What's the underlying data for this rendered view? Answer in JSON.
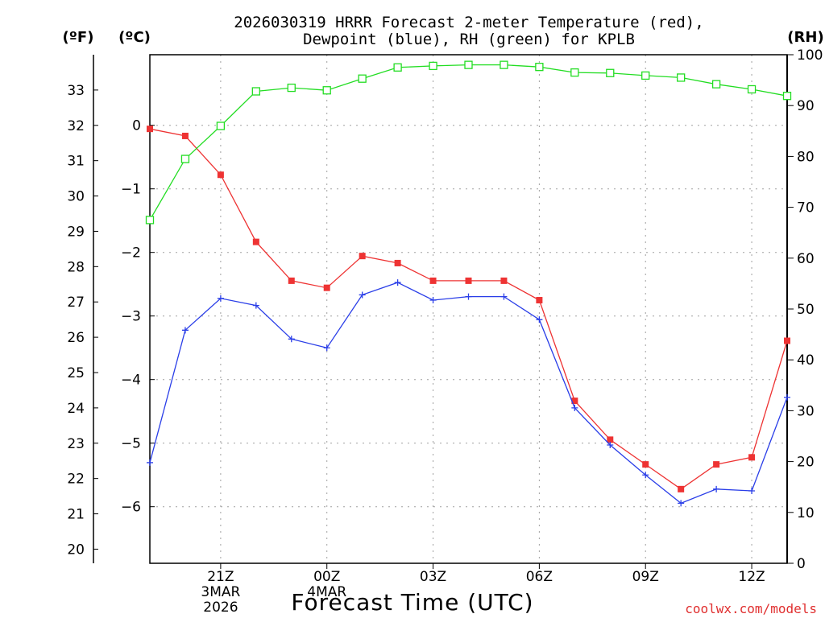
{
  "chart_data": {
    "type": "line",
    "title_line1": "2026030319 HRRR Forecast 2-meter Temperature (red),",
    "title_line2": "Dewpoint (blue), RH (green) for KPLB",
    "xlabel": "Forecast Time (UTC)",
    "credit": "coolwx.com/models",
    "units": {
      "fahrenheit": "(ºF)",
      "celsius": "(ºC)",
      "rh": "(RH)"
    },
    "fahrenheit_axis": {
      "ylim": [
        19.6,
        34.0
      ],
      "ticks": [
        "20",
        "21",
        "22",
        "23",
        "24",
        "25",
        "26",
        "27",
        "28",
        "29",
        "30",
        "31",
        "32",
        "33"
      ],
      "values": [
        20,
        21,
        22,
        23,
        24,
        25,
        26,
        27,
        28,
        29,
        30,
        31,
        32,
        33
      ]
    },
    "celsius_axis": {
      "ylim": [
        -6.89,
        1.11
      ],
      "ticks": [
        "0",
        "−1",
        "−2",
        "−3",
        "−4",
        "−5",
        "−6"
      ],
      "values": [
        0,
        -1,
        -2,
        -3,
        -4,
        -5,
        -6
      ]
    },
    "rh_axis": {
      "ylim": [
        0,
        100
      ],
      "ticks": [
        "0",
        "10",
        "20",
        "30",
        "40",
        "50",
        "60",
        "70",
        "80",
        "90",
        "100"
      ],
      "values": [
        0,
        10,
        20,
        30,
        40,
        50,
        60,
        70,
        80,
        90,
        100
      ]
    },
    "x_hours": [
      19,
      20,
      21,
      22,
      23,
      24,
      25,
      26,
      27,
      28,
      29,
      30,
      31,
      32,
      33,
      34,
      35,
      36,
      37
    ],
    "x_ticks": [
      {
        "hour": 21,
        "label": "21Z",
        "line2": "3MAR",
        "line3": "2026"
      },
      {
        "hour": 24,
        "label": "00Z",
        "line2": "4MAR",
        "line3": ""
      },
      {
        "hour": 27,
        "label": "03Z",
        "line2": "",
        "line3": ""
      },
      {
        "hour": 30,
        "label": "06Z",
        "line2": "",
        "line3": ""
      },
      {
        "hour": 33,
        "label": "09Z",
        "line2": "",
        "line3": ""
      },
      {
        "hour": 36,
        "label": "12Z",
        "line2": "",
        "line3": ""
      }
    ],
    "series": [
      {
        "name": "Temperature",
        "axis": "fahrenheit",
        "color": "#ee3333",
        "marker": "filled-square",
        "values": [
          31.9,
          31.7,
          30.6,
          28.7,
          27.6,
          27.4,
          28.3,
          28.1,
          27.6,
          27.6,
          27.6,
          27.05,
          24.2,
          23.1,
          22.4,
          21.7,
          22.4,
          22.6,
          25.9
        ]
      },
      {
        "name": "Dewpoint",
        "axis": "fahrenheit",
        "color": "#2a3ee8",
        "marker": "plus",
        "values": [
          22.45,
          26.2,
          27.1,
          26.9,
          25.95,
          25.7,
          27.2,
          27.55,
          27.05,
          27.15,
          27.15,
          26.5,
          24.0,
          22.95,
          22.1,
          21.3,
          21.7,
          21.65,
          24.3
        ]
      },
      {
        "name": "RH",
        "axis": "rh",
        "color": "#22dd22",
        "marker": "open-square",
        "values": [
          67.5,
          79.5,
          86.0,
          92.8,
          93.5,
          93.0,
          95.3,
          97.5,
          97.8,
          98.0,
          98.0,
          97.6,
          96.5,
          96.4,
          95.9,
          95.5,
          94.2,
          93.2,
          91.9
        ]
      }
    ]
  }
}
